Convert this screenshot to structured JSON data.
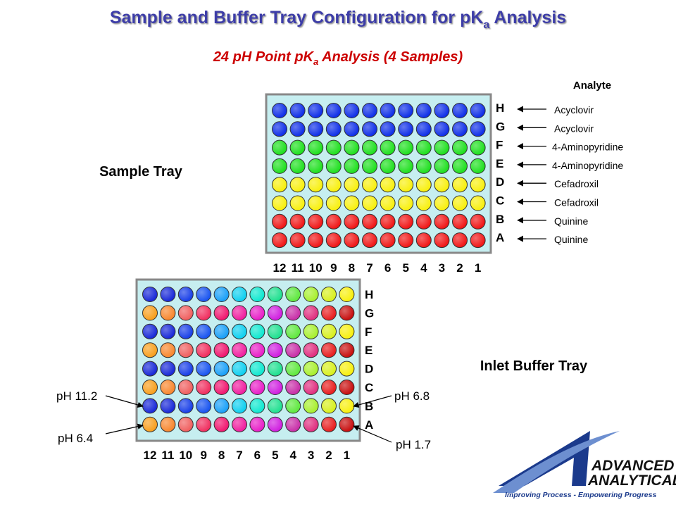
{
  "header": {
    "title": {
      "before": "Sample and Buffer Tray Configuration for pK",
      "sub": "a",
      "after": " Analysis"
    },
    "subtitle": {
      "before": "24 pH Point pK",
      "sub": "a",
      "after": " Analysis (4 Samples)"
    }
  },
  "sample_tray": {
    "label": "Sample Tray",
    "analyte_heading": "Analyte",
    "rows": [
      "H",
      "G",
      "F",
      "E",
      "D",
      "C",
      "B",
      "A"
    ],
    "analytes": [
      "Acyclovir",
      "Acyclovir",
      "4-Aminopyridine",
      "4-Aminopyridine",
      "Cefadroxil",
      "Cefadroxil",
      "Quinine",
      "Quinine"
    ],
    "columns": [
      "12",
      "11",
      "10",
      "9",
      "8",
      "7",
      "6",
      "5",
      "4",
      "3",
      "2",
      "1"
    ]
  },
  "buffer_tray": {
    "label": "Inlet Buffer Tray",
    "rows": [
      "H",
      "G",
      "F",
      "E",
      "D",
      "C",
      "B",
      "A"
    ],
    "columns": [
      "12",
      "11",
      "10",
      "9",
      "8",
      "7",
      "6",
      "5",
      "4",
      "3",
      "2",
      "1"
    ],
    "callouts": [
      "pH 11.2",
      "pH 6.4",
      "pH 6.8",
      "pH 1.7"
    ]
  },
  "logo": {
    "line1": "ADVANCED",
    "line2": "ANALYTICAL",
    "tagline": "Improving Process - Empowering Progress"
  }
}
